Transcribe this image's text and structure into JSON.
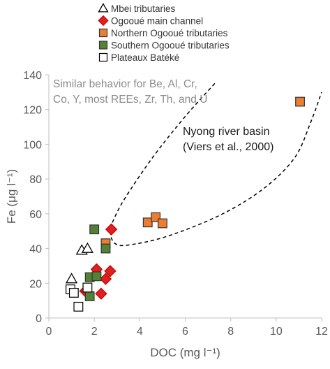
{
  "chart_data": {
    "type": "scatter",
    "xlabel": "DOC (mg l⁻¹)",
    "ylabel": "Fe (μg l⁻¹)",
    "xlim": [
      0,
      12
    ],
    "ylim": [
      0,
      140
    ],
    "x_ticks": [
      0,
      2,
      4,
      6,
      8,
      10,
      12
    ],
    "y_ticks": [
      0,
      20,
      40,
      60,
      80,
      100,
      120,
      140
    ],
    "grid": false,
    "legend_position": "top-left, above plot",
    "annotations": {
      "note_lines": [
        "Similar behavior for Be, Al, Cr,",
        "Co, Y, most REEs, Zr, Th, and U"
      ],
      "region_lines": [
        "Nyong river basin",
        "(Viers et al., 2000)"
      ]
    },
    "series": [
      {
        "name": "Mbei tributaries",
        "marker": "triangle-open",
        "color": "#000000",
        "fill": "#ffffff",
        "points": [
          [
            1.0,
            22.5
          ],
          [
            1.45,
            39
          ],
          [
            1.7,
            40
          ]
        ]
      },
      {
        "name": "Ogooué main channel",
        "marker": "diamond",
        "color": "#c00000",
        "fill": "#e02020",
        "points": [
          [
            2.75,
            51
          ],
          [
            2.1,
            28
          ],
          [
            2.7,
            27
          ],
          [
            2.5,
            22.5
          ],
          [
            2.3,
            14
          ],
          [
            1.6,
            15.5
          ]
        ]
      },
      {
        "name": "Northern Ogooué tributaries",
        "marker": "square",
        "color": "#333333",
        "fill": "#ed7d31",
        "points": [
          [
            2.5,
            43
          ],
          [
            4.35,
            55
          ],
          [
            4.7,
            58
          ],
          [
            5.0,
            54.5
          ],
          [
            11.05,
            124.5
          ]
        ]
      },
      {
        "name": "Southern Ogooué tributaries",
        "marker": "square",
        "color": "#333333",
        "fill": "#548235",
        "points": [
          [
            2.0,
            51
          ],
          [
            2.5,
            40
          ],
          [
            1.8,
            23.5
          ],
          [
            2.1,
            24
          ],
          [
            1.8,
            12.5
          ]
        ]
      },
      {
        "name": "Plateaux Batéké",
        "marker": "square-open",
        "color": "#000000",
        "fill": "#ffffff",
        "points": [
          [
            0.95,
            16.5
          ],
          [
            1.7,
            17.5
          ],
          [
            1.3,
            6.5
          ],
          [
            1.1,
            14.5
          ]
        ]
      }
    ],
    "envelope": {
      "style": "dashed",
      "color": "#000000",
      "points": [
        [
          7.3,
          135
        ],
        [
          6.0,
          116
        ],
        [
          4.6,
          93
        ],
        [
          3.4,
          70
        ],
        [
          2.9,
          58
        ],
        [
          2.7,
          50
        ],
        [
          2.9,
          43
        ],
        [
          3.5,
          42
        ],
        [
          5.2,
          47
        ],
        [
          7.5,
          59
        ],
        [
          9.4,
          74
        ],
        [
          10.8,
          92
        ],
        [
          11.5,
          112
        ],
        [
          12.0,
          130
        ]
      ]
    }
  }
}
